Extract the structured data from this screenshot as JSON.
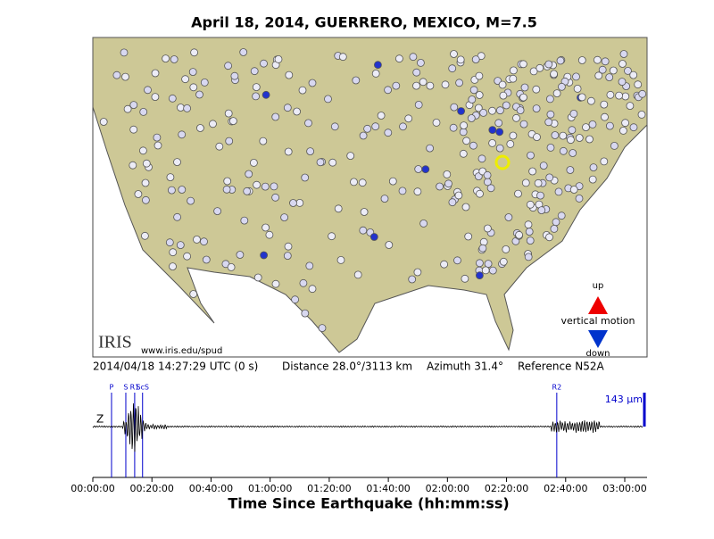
{
  "title": "April 18, 2014, GUERRERO, MEXICO, M=7.5",
  "map": {
    "logo": "IRIS",
    "url": "www.iris.edu/spud",
    "legend": {
      "up": "up",
      "label": "vertical motion",
      "down": "down"
    }
  },
  "info": {
    "origin": "2014/04/18 14:27:29 UTC (0 s)",
    "distance": "Distance  28.0°/3113 km",
    "azimuth": "Azimuth  31.4°",
    "reference": "Reference N52A"
  },
  "seismogram": {
    "channel": "Z",
    "scale": "143 μm",
    "xlim": [
      0,
      11250
    ],
    "xticks": [
      {
        "value": 0,
        "label": "00:00:00"
      },
      {
        "value": 1200,
        "label": "00:20:00"
      },
      {
        "value": 2400,
        "label": "00:40:00"
      },
      {
        "value": 3600,
        "label": "01:00:00"
      },
      {
        "value": 4800,
        "label": "01:20:00"
      },
      {
        "value": 6000,
        "label": "01:40:00"
      },
      {
        "value": 7200,
        "label": "02:00:00"
      },
      {
        "value": 8400,
        "label": "02:20:00"
      },
      {
        "value": 9600,
        "label": "02:40:00"
      },
      {
        "value": 10800,
        "label": "03:00:00"
      }
    ],
    "phases": [
      {
        "name": "P",
        "time": 380
      },
      {
        "name": "S",
        "time": 670
      },
      {
        "name": "R1",
        "time": 850
      },
      {
        "name": "ScS",
        "time": 1010
      },
      {
        "name": "R2",
        "time": 9420
      }
    ],
    "xlabel": "Time Since Earthquake (hh:mm:ss)"
  }
}
